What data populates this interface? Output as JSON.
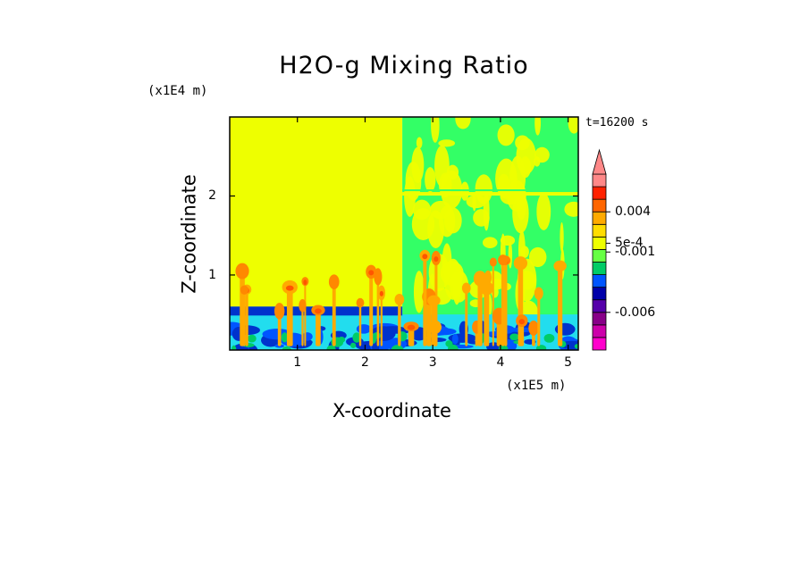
{
  "chart_data": {
    "type": "heatmap",
    "title": "H2O-g Mixing Ratio",
    "xlabel": "X-coordinate",
    "ylabel": "Z-coordinate",
    "x_unit": "(x1E5 m)",
    "y_unit": "(x1E4 m)",
    "time_label": "t=16200 s",
    "xlim": [
      0,
      5.15
    ],
    "ylim": [
      0.05,
      3.0
    ],
    "x_ticks": [
      1,
      2,
      3,
      4,
      5
    ],
    "x_tick_labels": [
      "1",
      "2",
      "3",
      "4",
      "5"
    ],
    "y_ticks": [
      1,
      2
    ],
    "y_tick_labels": [
      "1",
      "2"
    ],
    "grid": false,
    "colorbar": {
      "position": "right",
      "extend": "max",
      "levels_low_to_high": [
        "#ff00cc",
        "#cc00aa",
        "#880088",
        "#5500aa",
        "#0000aa",
        "#0055ff",
        "#00cc66",
        "#66ff44",
        "#eeff00",
        "#ffdd00",
        "#ffaa00",
        "#ff6600",
        "#ff2200",
        "#ff8888"
      ],
      "labels": [
        {
          "text": "0.004",
          "value": 0.004
        },
        {
          "text": "5e-4",
          "value": 0.0005
        },
        {
          "text": "-0.001",
          "value": -0.001
        },
        {
          "text": "-0.006",
          "value": -0.006
        }
      ]
    },
    "regions": {
      "left_domain_x": [
        0,
        2.55
      ],
      "left_background_color": "#eeff00",
      "right_domain_x": [
        2.55,
        5.15
      ],
      "right_background_color": "#33ff66",
      "boundary_layer_top_left": 0.6,
      "boundary_layer_top_right": 0.5
    }
  }
}
